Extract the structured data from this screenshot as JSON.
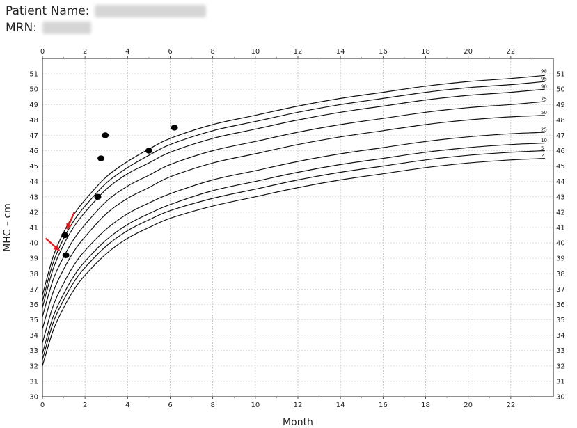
{
  "header": {
    "patient_name_label": "Patient Name:",
    "mrn_label": "MRN:"
  },
  "chart_data": {
    "type": "line",
    "title": "",
    "xlabel": "Month",
    "ylabel": "MHC – cm",
    "xlim": [
      0,
      24
    ],
    "ylim": [
      30,
      52
    ],
    "x_ticks": [
      0,
      2,
      4,
      6,
      8,
      10,
      12,
      14,
      16,
      18,
      20,
      22
    ],
    "y_ticks": [
      30,
      31,
      32,
      33,
      34,
      35,
      36,
      37,
      38,
      39,
      40,
      41,
      42,
      43,
      44,
      45,
      46,
      47,
      48,
      49,
      50,
      51
    ],
    "grid": true,
    "x_curve": [
      0,
      0.5,
      1,
      1.5,
      2,
      3,
      4,
      5,
      6,
      8,
      10,
      12,
      14,
      16,
      18,
      20,
      22,
      23.6
    ],
    "series": [
      {
        "name": "2",
        "label_y": 45.5,
        "values": [
          32.0,
          34.3,
          35.8,
          37.0,
          37.9,
          39.3,
          40.3,
          41.0,
          41.6,
          42.4,
          43.0,
          43.6,
          44.1,
          44.5,
          44.9,
          45.2,
          45.4,
          45.5
        ]
      },
      {
        "name": "5",
        "label_y": 46.0,
        "values": [
          32.4,
          34.8,
          36.3,
          37.5,
          38.4,
          39.8,
          40.8,
          41.5,
          42.1,
          42.9,
          43.5,
          44.1,
          44.6,
          45.0,
          45.4,
          45.7,
          45.9,
          46.0
        ]
      },
      {
        "name": "10",
        "label_y": 46.5,
        "values": [
          32.8,
          35.2,
          36.7,
          37.9,
          38.8,
          40.2,
          41.2,
          41.9,
          42.5,
          43.4,
          44.0,
          44.6,
          45.1,
          45.5,
          45.9,
          46.2,
          46.4,
          46.5
        ]
      },
      {
        "name": "25",
        "label_y": 47.2,
        "values": [
          33.5,
          35.9,
          37.4,
          38.6,
          39.5,
          40.9,
          41.9,
          42.6,
          43.2,
          44.1,
          44.7,
          45.3,
          45.8,
          46.2,
          46.6,
          46.9,
          47.1,
          47.2
        ]
      },
      {
        "name": "50",
        "label_y": 48.3,
        "values": [
          34.4,
          36.8,
          38.3,
          39.5,
          40.4,
          41.9,
          42.9,
          43.6,
          44.3,
          45.2,
          45.8,
          46.4,
          46.9,
          47.3,
          47.7,
          48.0,
          48.2,
          48.3
        ]
      },
      {
        "name": "75",
        "label_y": 49.2,
        "values": [
          35.2,
          37.6,
          39.1,
          40.3,
          41.2,
          42.7,
          43.7,
          44.4,
          45.1,
          46.0,
          46.6,
          47.2,
          47.7,
          48.1,
          48.5,
          48.8,
          49.0,
          49.2
        ]
      },
      {
        "name": "90",
        "label_y": 50.0,
        "values": [
          35.8,
          38.3,
          39.9,
          41.1,
          42.0,
          43.5,
          44.5,
          45.2,
          45.9,
          46.8,
          47.4,
          48.0,
          48.5,
          48.9,
          49.3,
          49.6,
          49.8,
          50.0
        ]
      },
      {
        "name": "95",
        "label_y": 50.5,
        "values": [
          36.2,
          38.7,
          40.3,
          41.5,
          42.4,
          43.9,
          44.9,
          45.7,
          46.4,
          47.3,
          47.9,
          48.5,
          49.0,
          49.4,
          49.8,
          50.1,
          50.3,
          50.5
        ]
      },
      {
        "name": "98",
        "label_y": 51.0,
        "values": [
          36.6,
          39.1,
          40.7,
          41.9,
          42.8,
          44.3,
          45.3,
          46.1,
          46.8,
          47.7,
          48.3,
          48.9,
          49.4,
          49.8,
          50.2,
          50.5,
          50.7,
          50.9
        ]
      }
    ],
    "measurements": [
      {
        "x": 1.05,
        "y": 40.5
      },
      {
        "x": 1.1,
        "y": 39.2
      },
      {
        "x": 2.6,
        "y": 43.0
      },
      {
        "x": 2.75,
        "y": 45.5
      },
      {
        "x": 2.95,
        "y": 47.0
      },
      {
        "x": 5.0,
        "y": 46.0
      },
      {
        "x": 6.2,
        "y": 47.5
      }
    ],
    "annotations": [
      {
        "type": "arrow",
        "from": [
          1.5,
          42.0
        ],
        "to": [
          1.15,
          40.9
        ],
        "color": "#e02020"
      },
      {
        "type": "arrow",
        "from": [
          0.15,
          40.3
        ],
        "to": [
          0.8,
          39.5
        ],
        "color": "#e02020"
      }
    ]
  }
}
